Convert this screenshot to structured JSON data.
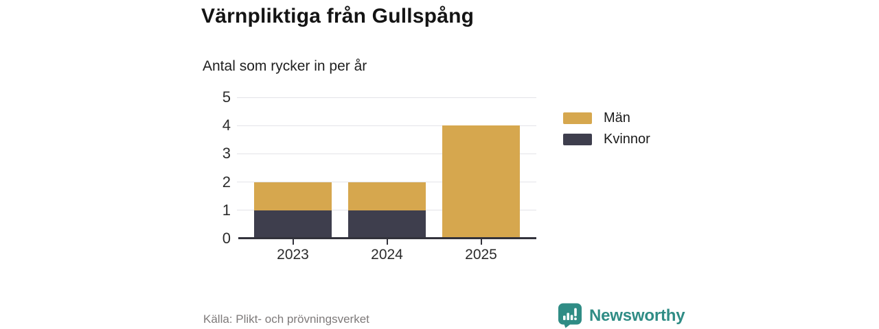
{
  "chart_data": {
    "type": "bar",
    "stacked": true,
    "title": "Värnpliktiga från Gullspång",
    "subtitle": "Antal som rycker in per år",
    "categories": [
      "2023",
      "2024",
      "2025"
    ],
    "series": [
      {
        "name": "Män",
        "color": "#D6A74E",
        "values": [
          1,
          1,
          4
        ]
      },
      {
        "name": "Kvinnor",
        "color": "#3E3E4D",
        "values": [
          1,
          1,
          0
        ]
      }
    ],
    "stack_bottom_to_top": [
      "Kvinnor",
      "Män"
    ],
    "xlabel": "",
    "ylabel": "",
    "ylim": [
      0,
      5
    ],
    "yticks": [
      0,
      1,
      2,
      3,
      4,
      5
    ],
    "grid": true,
    "legend_position": "right-top"
  },
  "footer": {
    "source": "Källa: Plikt- och prövningsverket",
    "brand": "Newsworthy"
  },
  "colors": {
    "men": "#D6A74E",
    "women": "#3E3E4D",
    "grid": "#E3E3E8",
    "axis": "#32323B",
    "tick_text": "#2B2B2B",
    "source_text": "#7E7A7A",
    "brand_teal": "#2F8C85"
  }
}
